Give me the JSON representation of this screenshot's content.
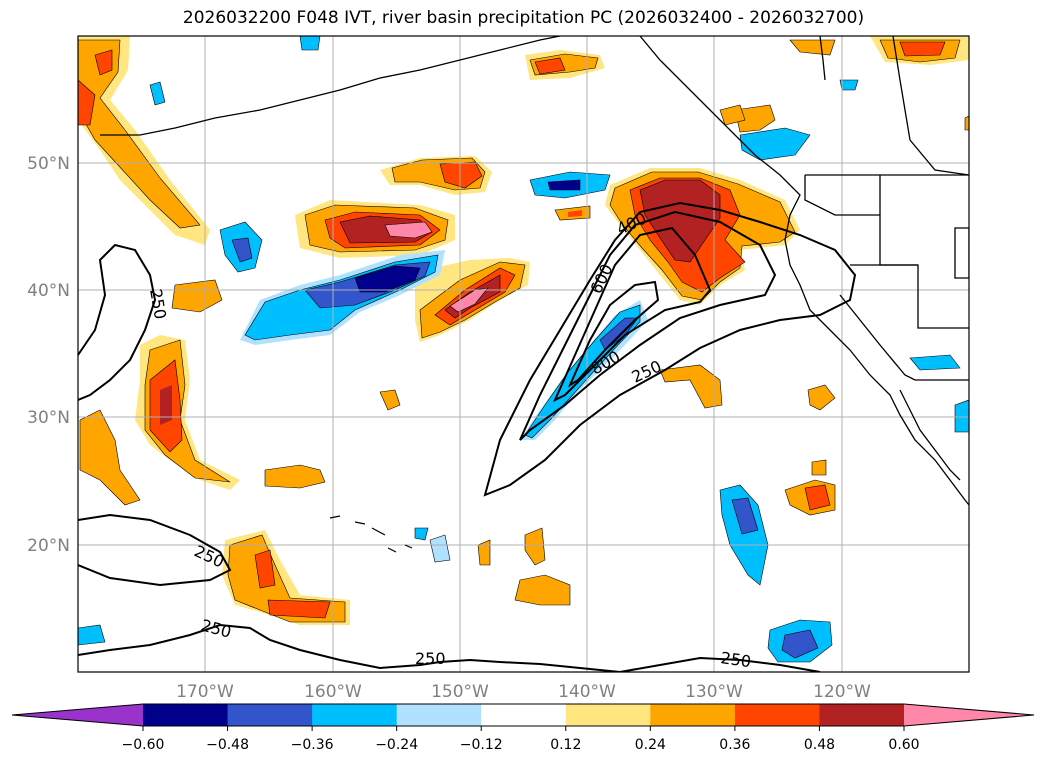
{
  "title": "2026032200 F048 IVT, river basin precipitation PC (2026032400 - 2026032700)",
  "axes": {
    "lon_labels": [
      "170°W",
      "160°W",
      "150°W",
      "140°W",
      "130°W",
      "120°W"
    ],
    "lat_labels": [
      "50°N",
      "40°N",
      "30°N",
      "20°N"
    ],
    "grid": true
  },
  "ivt_contour_labels": [
    "250",
    "400",
    "600",
    "800",
    "250",
    "250",
    "250",
    "250",
    "250"
  ],
  "colorbar": {
    "tick_labels": [
      "−0.60",
      "−0.48",
      "−0.36",
      "−0.24",
      "−0.12",
      "0.12",
      "0.24",
      "0.36",
      "0.48",
      "0.60"
    ],
    "colors": [
      "#9933cc",
      "#00008b",
      "#3355cc",
      "#00bfff",
      "#b0e2ff",
      "#ffffff",
      "#ffe680",
      "#ffa500",
      "#ff4500",
      "#b22222",
      "#ff88aa"
    ],
    "extend": "both"
  }
}
